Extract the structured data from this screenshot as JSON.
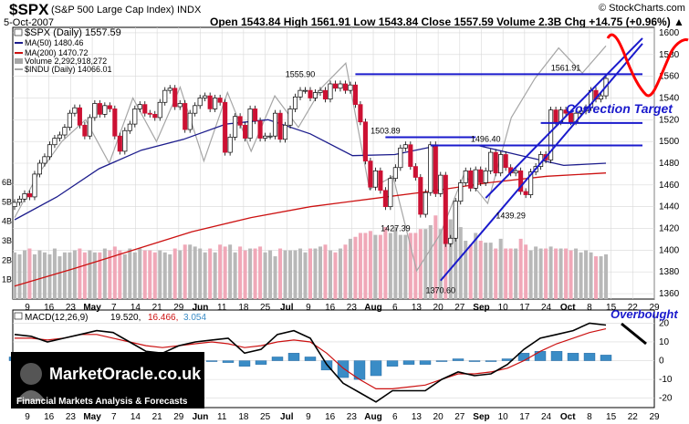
{
  "header": {
    "symbol": "$SPX",
    "name": "(S&P 500 Large Cap Index) INDX",
    "date": "5-Oct-2007",
    "copyright": "© StockCharts.com",
    "quote": "Open 1543.84  High 1561.91  Low 1543.84  Close 1557.59  Volume 2.3B  Chg +14.75 (+0.96%) ▲"
  },
  "legend": {
    "title": "$SPX (Daily) 1557.59",
    "ma50": "MA(50) 1480.46",
    "ma200": "MA(200) 1470.72",
    "volume": "Volume 2,292,918,272",
    "indu": "$INDU (Daily) 14066.01",
    "colors": {
      "ma50": "#1c1c8c",
      "ma200": "#cc1111",
      "volume": "#a6a6a6",
      "indu": "#a6a6a6"
    }
  },
  "annotations": {
    "correction_target": "Correction Target",
    "overbought": "Overbought",
    "price_labels": [
      "1555.90",
      "1561.91",
      "1503.89",
      "1496.40",
      "1427.39",
      "1439.29",
      "1370.60"
    ]
  },
  "macd_legend": {
    "label": "MACD(12,26,9)",
    "macd": "19.520,",
    "signal": "16.466,",
    "hist": "3.054",
    "colors": {
      "macd": "#000000",
      "signal": "#cc1111",
      "hist": "#3a8cc6"
    }
  },
  "logo": {
    "brand": "MarketOracle.co.uk",
    "tagline": "Financial Markets Analysis & Forecasts"
  },
  "chart_data": [
    {
      "type": "candlestick",
      "title": "$SPX (Daily) 1557.59",
      "x_labels": [
        "9",
        "16",
        "23",
        "May",
        "7",
        "14",
        "21",
        "29",
        "Jun",
        "11",
        "18",
        "25",
        "Jul",
        "9",
        "16",
        "23",
        "Aug",
        "6",
        "13",
        "20",
        "27",
        "Sep",
        "10",
        "17",
        "24",
        "Oct",
        "8",
        "15",
        "22",
        "29"
      ],
      "y_ticks": [
        1360,
        1380,
        1400,
        1420,
        1440,
        1460,
        1480,
        1500,
        1520,
        1540,
        1560,
        1580,
        1600
      ],
      "ylim": [
        1355,
        1605
      ],
      "series": [
        {
          "name": "$SPX",
          "close": [
            1444,
            1447,
            1452,
            1449,
            1470,
            1480,
            1486,
            1497,
            1503,
            1506,
            1513,
            1526,
            1531,
            1515,
            1505,
            1522,
            1535,
            1525,
            1533,
            1530,
            1505,
            1491,
            1510,
            1516,
            1530,
            1534,
            1526,
            1525,
            1522,
            1536,
            1547,
            1549,
            1532,
            1535,
            1511,
            1526,
            1533,
            1540,
            1542,
            1530,
            1540,
            1536,
            1490,
            1504,
            1523,
            1515,
            1503,
            1530,
            1519,
            1503,
            1505,
            1505,
            1526,
            1502,
            1515,
            1530,
            1541,
            1547,
            1547,
            1540,
            1545,
            1547,
            1539,
            1553,
            1549,
            1553,
            1547,
            1552,
            1534,
            1518,
            1482,
            1458,
            1473,
            1455,
            1440,
            1466,
            1476,
            1494,
            1497,
            1477,
            1467,
            1433,
            1453,
            1497,
            1452,
            1469,
            1406,
            1411,
            1445,
            1462,
            1473,
            1457,
            1474,
            1462,
            1473,
            1490,
            1471,
            1488,
            1476,
            1471,
            1473,
            1454,
            1451,
            1472,
            1477,
            1488,
            1483,
            1529,
            1518,
            1529,
            1526,
            1518,
            1526,
            1528,
            1531,
            1547,
            1539,
            1542,
            1558
          ]
        },
        {
          "name": "MA(50)",
          "values": [
            1428,
            1449,
            1475,
            1492,
            1502,
            1516,
            1520,
            1507,
            1487,
            1488,
            1496,
            1496,
            1487,
            1478,
            1480
          ]
        },
        {
          "name": "MA(200)",
          "values": [
            1367,
            1383,
            1400,
            1417,
            1430,
            1440,
            1447,
            1454,
            1462,
            1468,
            1471
          ]
        },
        {
          "name": "$INDU",
          "values": [
            1430,
            1470,
            1500,
            1520,
            1480,
            1540,
            1500,
            1550,
            1482,
            1545,
            1491,
            1542,
            1513,
            1550,
            1572,
            1456,
            1468,
            1381,
            1415,
            1470,
            1443,
            1522,
            1558,
            1586,
            1563,
            1588
          ]
        }
      ],
      "key_levels": [
        {
          "label": "1555.90",
          "value": 1555.9
        },
        {
          "label": "1561.91",
          "value": 1561.91
        },
        {
          "label": "1503.89",
          "value": 1503.89
        },
        {
          "label": "1496.40",
          "value": 1496.4
        },
        {
          "label": "1427.39",
          "value": 1427.39
        },
        {
          "label": "1439.29",
          "value": 1439.29
        },
        {
          "label": "1370.60",
          "value": 1370.6
        }
      ]
    },
    {
      "type": "bar",
      "title": "Volume 2,292,918,272",
      "y_ticks": [
        "1B",
        "2B",
        "3B",
        "4B",
        "5B",
        "6B"
      ],
      "ylim": [
        0,
        6
      ],
      "values": [
        2.4,
        2.3,
        2.5,
        2.6,
        2.3,
        2.5,
        2.4,
        2.3,
        2.6,
        2.2,
        2.4,
        2.4,
        2.5,
        2.6,
        2.4,
        2.5,
        2.4,
        2.4,
        2.6,
        2.5,
        2.7,
        2.5,
        2.3,
        2.6,
        2.4,
        2.6,
        2.5,
        2.5,
        2.4,
        2.5,
        2.4,
        2.3,
        2.6,
        2.5,
        2.8,
        2.8,
        2.7,
        2.6,
        2.4,
        2.6,
        2.4,
        2.8,
        2.7,
        2.8,
        2.4,
        2.7,
        2.5,
        2.6,
        2.6,
        2.7,
        2.4,
        2.5,
        2.2,
        2.6,
        2.5,
        2.5,
        2.5,
        2.6,
        2.4,
        2.6,
        2.6,
        2.7,
        2.8,
        2.5,
        2.4,
        2.6,
        2.8,
        3.1,
        3.2,
        3.4,
        3.4,
        3.5,
        3.3,
        3.3,
        3.7,
        3.4,
        3.7,
        3.3,
        3.3,
        3.4,
        3.4,
        3.6,
        3.6,
        3.8,
        4.3,
        3.6,
        4.4,
        4.1,
        3.5,
        3.7,
        3.0,
        2.8,
        3.4,
        3.0,
        2.9,
        2.9,
        2.6,
        3.1,
        2.6,
        2.6,
        2.6,
        3.1,
        2.8,
        2.5,
        2.7,
        2.6,
        2.6,
        2.7,
        2.6,
        2.6,
        2.6,
        2.5,
        2.6,
        2.4,
        2.5,
        2.4,
        2.2,
        2.2,
        2.3
      ]
    },
    {
      "type": "line",
      "title": "MACD(12,26,9)",
      "x_labels": [
        "9",
        "16",
        "23",
        "May",
        "7",
        "14",
        "21",
        "29",
        "Jun",
        "11",
        "18",
        "25",
        "Jul",
        "9",
        "16",
        "23",
        "Aug",
        "6",
        "13",
        "20",
        "27",
        "Sep",
        "10",
        "17",
        "24",
        "Oct",
        "8",
        "15",
        "22",
        "29"
      ],
      "y_ticks": [
        20,
        10,
        0,
        -10,
        -20
      ],
      "ylim": [
        -25,
        27
      ],
      "series": [
        {
          "name": "MACD",
          "values": [
            14,
            13,
            10,
            12,
            14,
            16,
            15,
            10,
            5,
            4,
            8,
            10,
            11,
            12,
            4,
            6,
            14,
            16,
            12,
            -2,
            -12,
            -17,
            -22,
            -16,
            -16,
            -16,
            -10,
            -6,
            -8,
            -7,
            -2,
            6,
            12,
            14,
            16,
            20,
            19
          ]
        },
        {
          "name": "Signal",
          "values": [
            12,
            12,
            11,
            12,
            14,
            14,
            12,
            10,
            8,
            7,
            8,
            9,
            10,
            9,
            7,
            8,
            10,
            11,
            10,
            4,
            -4,
            -10,
            -15,
            -15,
            -14,
            -13,
            -10,
            -7,
            -7,
            -6,
            -4,
            0,
            5,
            9,
            12,
            15,
            17
          ]
        },
        {
          "name": "Histogram",
          "values": [
            2,
            2,
            1,
            0,
            1,
            2,
            2,
            1,
            0,
            -2,
            -2,
            -1,
            0,
            -1,
            -3,
            -2,
            2,
            4,
            2,
            -5,
            -9,
            -10,
            -8,
            -3,
            -2,
            -2,
            0,
            1,
            0,
            0,
            1,
            4,
            5,
            5,
            4,
            4,
            3
          ]
        }
      ]
    }
  ]
}
